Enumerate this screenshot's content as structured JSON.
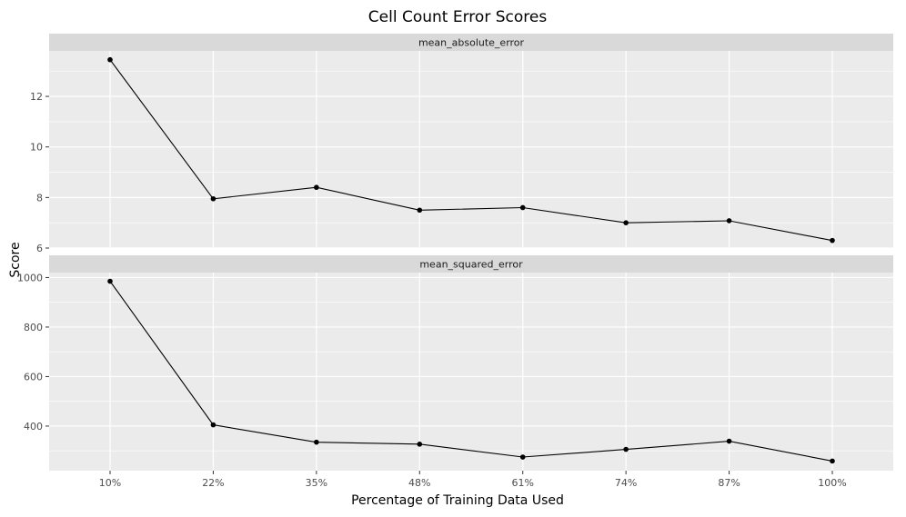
{
  "chart_data": {
    "type": "line",
    "title": "Cell Count Error Scores",
    "xlabel": "Percentage of Training Data Used",
    "ylabel": "Score",
    "categories": [
      "10%",
      "22%",
      "35%",
      "48%",
      "61%",
      "74%",
      "87%",
      "100%"
    ],
    "grid": true,
    "facets": [
      {
        "label": "mean_absolute_error",
        "ylim": [
          6,
          13.8
        ],
        "yticks": [
          6,
          8,
          10,
          12
        ],
        "ytick_labels": [
          "6",
          "8",
          "10",
          "12"
        ],
        "values": [
          13.45,
          7.95,
          8.4,
          7.5,
          7.6,
          7.0,
          7.08,
          6.3
        ]
      },
      {
        "label": "mean_squared_error",
        "ylim": [
          220,
          1020
        ],
        "yticks": [
          400,
          600,
          800,
          1000
        ],
        "ytick_labels": [
          "400",
          "600",
          "800",
          "1000"
        ],
        "values": [
          985,
          405,
          335,
          327,
          275,
          306,
          339,
          259
        ]
      }
    ],
    "colors": {
      "panel_bg": "#ebebeb",
      "strip_bg": "#d9d9d9",
      "grid": "#ffffff",
      "line": "#000000"
    }
  }
}
